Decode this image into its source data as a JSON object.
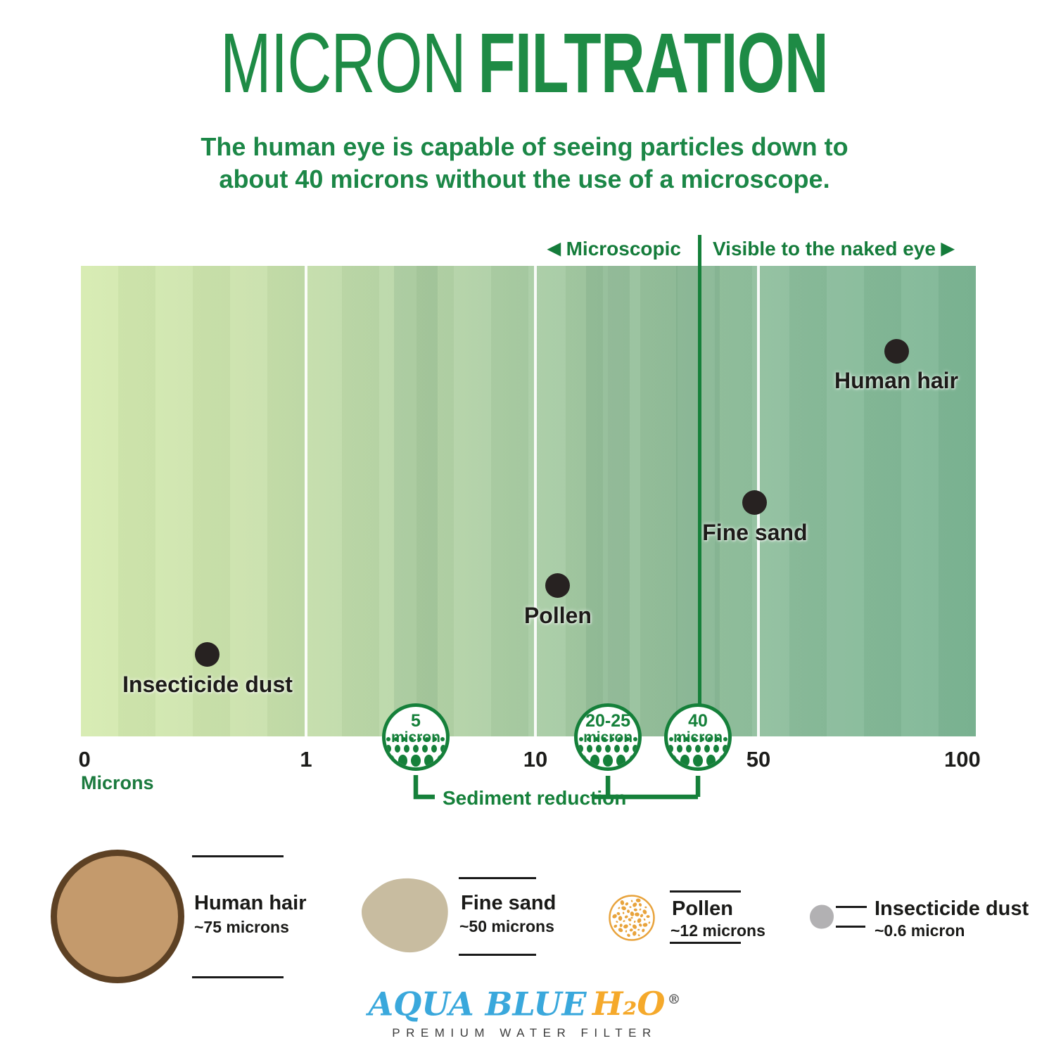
{
  "title": {
    "light": "MICRON",
    "bold": "FILTRATION"
  },
  "subtitle": {
    "line1": "The human eye is capable of seeing particles down to",
    "line2": "about 40 microns without the use of a microscope."
  },
  "colors": {
    "heading_green": "#1e8b45",
    "dark_green": "#15803a",
    "gradient_left": "#d6ebb0",
    "gradient_right": "#7cb594",
    "dot_black": "#272221",
    "hair_fill": "#c49a6c",
    "hair_border": "#5d4124",
    "sand_fill": "#c8bca0",
    "pollen_orange": "#e8a33c",
    "dust_gray": "#b2b1b3",
    "logo_blue": "#3aa8dc",
    "logo_orange": "#f5a92b"
  },
  "chart_data": {
    "type": "scatter",
    "xlabel": "Microns",
    "x_scale": "non-linear micron scale from 0 to 100",
    "grid": "vertical white gridlines at 1, 10 and 50 microns",
    "region_labels": {
      "left": "Microscopic",
      "right": "Visible to the naked eye"
    },
    "divider": {
      "microns": 40,
      "pos": 0.6918,
      "meaning": "visibility threshold of the naked eye"
    },
    "ticks": [
      {
        "label": "0",
        "pos": 0.004,
        "gridline": false
      },
      {
        "label": "1",
        "pos": 0.2516,
        "gridline": true
      },
      {
        "label": "10",
        "pos": 0.5079,
        "gridline": true
      },
      {
        "label": "50",
        "pos": 0.7571,
        "gridline": true
      },
      {
        "label": "100",
        "pos": 0.985,
        "gridline": false
      }
    ],
    "points": [
      {
        "label": "Insecticide dust",
        "microns": 0.6,
        "x": 0.1415,
        "y": 0.8266
      },
      {
        "label": "Pollen",
        "microns": 12,
        "x": 0.533,
        "y": 0.6801
      },
      {
        "label": "Fine sand",
        "microns": 50,
        "x": 0.7531,
        "y": 0.5037
      },
      {
        "label": "Human hair",
        "microns": 75,
        "x": 0.9112,
        "y": 0.1809
      }
    ],
    "filter_circles": [
      {
        "num": "5",
        "unit": "micron",
        "pos": 0.3742
      },
      {
        "num": "20-25",
        "unit": "micron",
        "pos": 0.5889
      },
      {
        "num": "40",
        "unit": "micron",
        "pos": 0.6895
      }
    ],
    "sediment_label": "Sediment reduction"
  },
  "legend": {
    "items": [
      {
        "name": "Human hair",
        "size": "~75 microns"
      },
      {
        "name": "Fine sand",
        "size": "~50 microns"
      },
      {
        "name": "Pollen",
        "size": "~12 microns"
      },
      {
        "name": "Insecticide dust",
        "size": "~0.6 micron"
      }
    ]
  },
  "logo": {
    "brand_blue": "AQUA BLUE",
    "brand_orange": "H₂O",
    "registered_mark": "®",
    "tagline": "PREMIUM WATER FILTER"
  }
}
